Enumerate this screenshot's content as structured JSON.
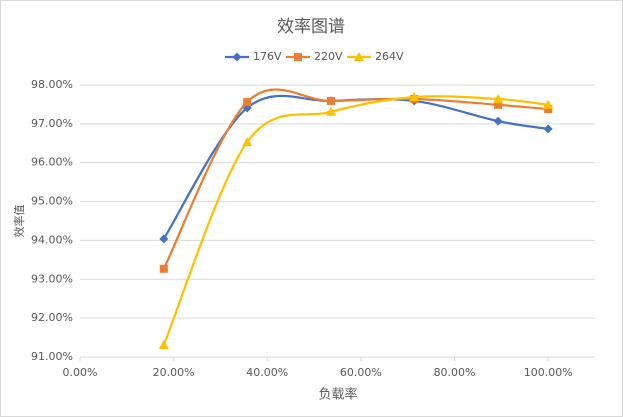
{
  "chart_data": {
    "type": "line",
    "title": "效率图谱",
    "x_label": "负载率",
    "y_label": "效率值",
    "x": [
      17.9,
      35.7,
      53.6,
      71.4,
      89.3,
      100
    ],
    "series": [
      {
        "name": "176V",
        "color": "#4472c4",
        "marker": "diamond",
        "values": [
          94.04,
          97.41,
          97.59,
          97.59,
          97.07,
          96.87
        ]
      },
      {
        "name": "220V",
        "color": "#ed7d31",
        "marker": "square",
        "values": [
          93.27,
          97.56,
          97.59,
          97.64,
          97.49,
          97.38
        ]
      },
      {
        "name": "264V",
        "color": "#ffc000",
        "marker": "triangle",
        "values": [
          91.31,
          96.53,
          97.31,
          97.69,
          97.64,
          97.49
        ]
      }
    ],
    "xlim": [
      0,
      110
    ],
    "xticks": [
      {
        "value": 0,
        "label": "0.00%"
      },
      {
        "value": 20,
        "label": "20.00%"
      },
      {
        "value": 40,
        "label": "40.00%"
      },
      {
        "value": 60,
        "label": "60.00%"
      },
      {
        "value": 80,
        "label": "80.00%"
      },
      {
        "value": 100,
        "label": "100.00%"
      }
    ],
    "ylim": [
      91,
      98
    ],
    "yticks": [
      {
        "value": 91,
        "label": "91.00%"
      },
      {
        "value": 92,
        "label": "92.00%"
      },
      {
        "value": 93,
        "label": "93.00%"
      },
      {
        "value": 94,
        "label": "94.00%"
      },
      {
        "value": 95,
        "label": "95.00%"
      },
      {
        "value": 96,
        "label": "96.00%"
      },
      {
        "value": 97,
        "label": "97.00%"
      },
      {
        "value": 98,
        "label": "98.00%"
      }
    ],
    "grid": true,
    "smooth": true,
    "legend": "top"
  }
}
